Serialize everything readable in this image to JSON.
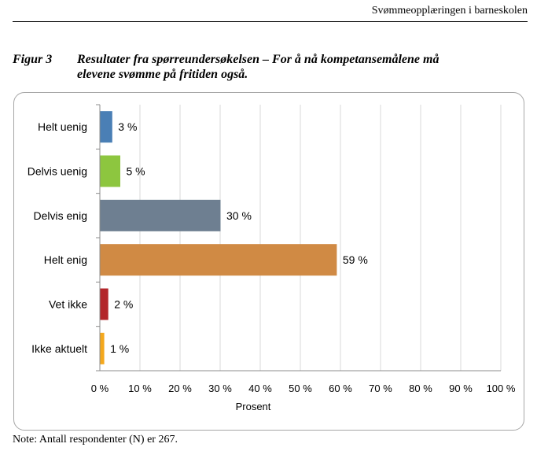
{
  "header": {
    "running_title": "Svømmeopplæringen i barneskolen"
  },
  "figure": {
    "label": "Figur 3",
    "caption_line1": "Resultater fra spørreundersøkelsen – For å nå kompetansemålene må",
    "caption_line2": "elevene svømme på fritiden også."
  },
  "note": "Note: Antall respondenter (N) er 267.",
  "chart_data": {
    "type": "bar",
    "orientation": "horizontal",
    "categories": [
      "Helt uenig",
      "Delvis uenig",
      "Delvis enig",
      "Helt enig",
      "Vet ikke",
      "Ikke aktuelt"
    ],
    "values": [
      3,
      5,
      30,
      59,
      2,
      1
    ],
    "data_labels": [
      "3 %",
      "5 %",
      "30 %",
      "59 %",
      "2 %",
      "1 %"
    ],
    "colors": [
      "#4a7fb5",
      "#8dc63f",
      "#6e7f91",
      "#d08a44",
      "#b3262a",
      "#f4a81d"
    ],
    "xlabel": "Prosent",
    "xlim": [
      0,
      100
    ],
    "xticks": [
      0,
      10,
      20,
      30,
      40,
      50,
      60,
      70,
      80,
      90,
      100
    ],
    "xtick_labels": [
      "0 %",
      "10 %",
      "20 %",
      "30 %",
      "40 %",
      "50 %",
      "60 %",
      "70 %",
      "80 %",
      "90 %",
      "100 %"
    ],
    "grid": "vertical",
    "legend": "none"
  }
}
